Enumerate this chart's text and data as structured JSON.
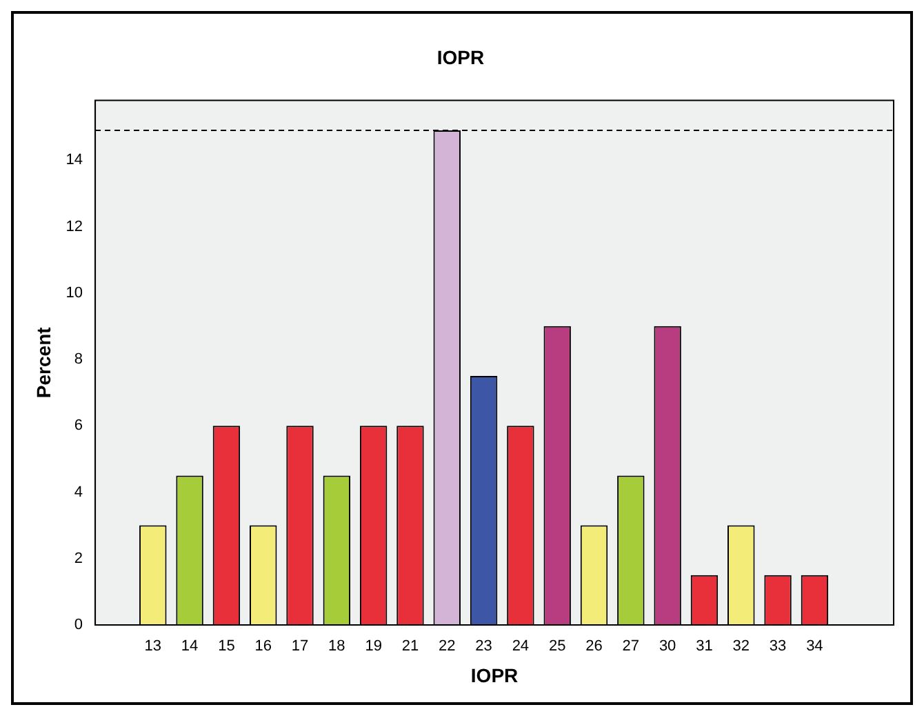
{
  "chart_data": {
    "type": "bar",
    "title": "IOPR",
    "xlabel": "IOPR",
    "ylabel": "Percent",
    "categories": [
      "13",
      "14",
      "15",
      "16",
      "17",
      "18",
      "19",
      "21",
      "22",
      "23",
      "24",
      "25",
      "26",
      "27",
      "30",
      "31",
      "32",
      "33",
      "34"
    ],
    "values": [
      3.0,
      4.5,
      6.0,
      3.0,
      6.0,
      4.5,
      6.0,
      6.0,
      14.9,
      7.5,
      6.0,
      9.0,
      3.0,
      4.5,
      9.0,
      1.5,
      3.0,
      1.5,
      1.5
    ],
    "colors": [
      "#f4ec78",
      "#a6cc3a",
      "#e8303a",
      "#f4ec78",
      "#e8303a",
      "#a6cc3a",
      "#e8303a",
      "#e8303a",
      "#d4b4d6",
      "#3d56a6",
      "#e8303a",
      "#b83c80",
      "#f4ec78",
      "#a6cc3a",
      "#b83c80",
      "#e8303a",
      "#f4ec78",
      "#e8303a",
      "#e8303a"
    ],
    "ylim": [
      0,
      15.8
    ],
    "yticks": [
      0,
      2,
      4,
      6,
      8,
      10,
      12,
      14
    ],
    "ref_lines": [
      {
        "axis": "y",
        "value": 14.9,
        "line_style": "dashed"
      }
    ]
  }
}
